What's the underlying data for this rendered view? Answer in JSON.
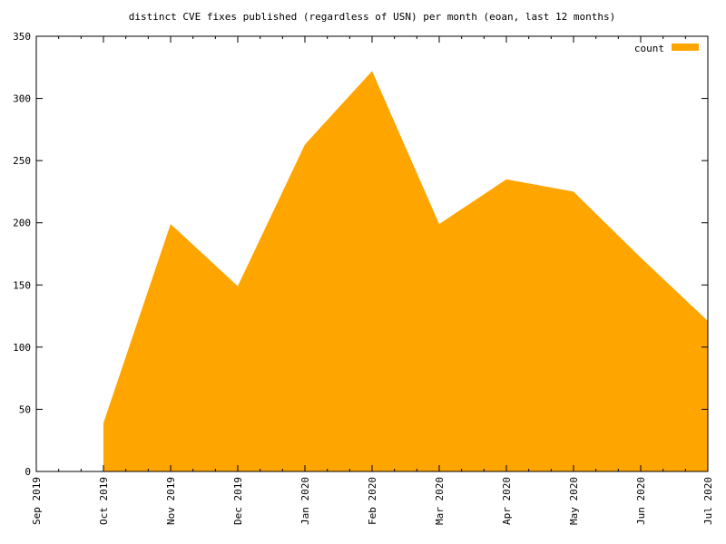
{
  "chart_data": {
    "type": "area",
    "title": "distinct CVE fixes published (regardless of USN) per month (eoan, last 12 months)",
    "xlabel": "",
    "ylabel": "",
    "x_ticks": [
      "Sep 2019",
      "Oct 2019",
      "Nov 2019",
      "Dec 2019",
      "Jan 2020",
      "Feb 2020",
      "Mar 2020",
      "Apr 2020",
      "May 2020",
      "Jun 2020",
      "Jul 2020"
    ],
    "y_ticks": [
      "0",
      "50",
      "100",
      "150",
      "200",
      "250",
      "300",
      "350"
    ],
    "ylim": [
      0,
      350
    ],
    "series": [
      {
        "name": "count",
        "color": "#ffa500",
        "x": [
          "Oct 2019",
          "Nov 2019",
          "Dec 2019",
          "Jan 2020",
          "Feb 2020",
          "Mar 2020",
          "Apr 2020",
          "May 2020",
          "Jun 2020",
          "Jul 2020"
        ],
        "values": [
          39,
          199,
          149,
          263,
          322,
          199,
          235,
          225,
          172,
          121
        ]
      }
    ],
    "legend_position": "top-right",
    "grid": false
  }
}
